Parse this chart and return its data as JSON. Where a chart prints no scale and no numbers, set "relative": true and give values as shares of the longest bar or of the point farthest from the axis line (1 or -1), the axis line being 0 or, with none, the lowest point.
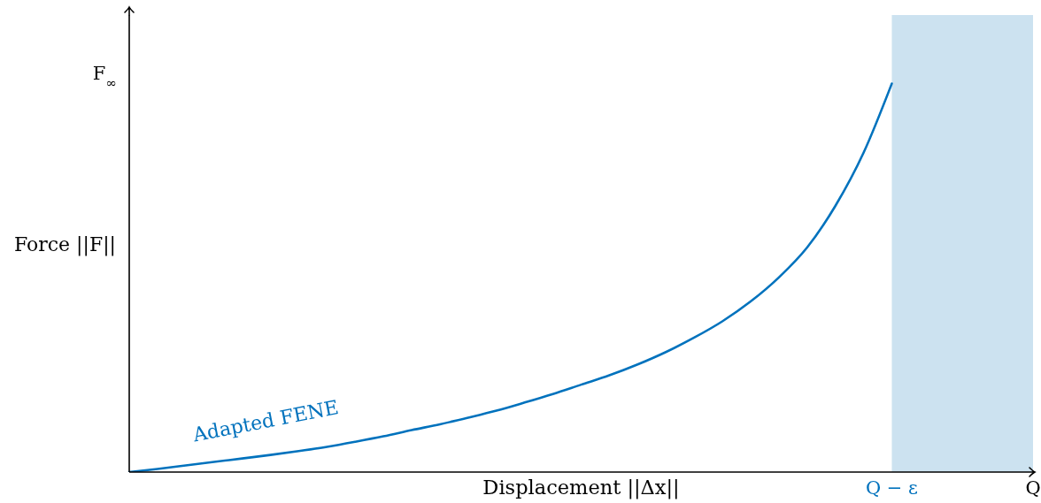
{
  "chart_data": {
    "type": "line",
    "relative": true,
    "xlabel": "Displacement ||Δx||",
    "ylabel": "Force ||F||",
    "categories": [
      null,
      null,
      null,
      null,
      null,
      null,
      null,
      null,
      null,
      null,
      null,
      null,
      null,
      null,
      null,
      null,
      null,
      null,
      null,
      null,
      null,
      null,
      null,
      null,
      null,
      null,
      null,
      "Q − ε",
      null,
      null,
      null,
      null,
      "Q"
    ],
    "series": [
      {
        "name": "Adapted FENE",
        "color": "#0072bd",
        "values": [
          0,
          0.008,
          0.017,
          0.026,
          0.035,
          0.044,
          0.054,
          0.065,
          0.078,
          0.092,
          0.108,
          0.123,
          0.14,
          0.158,
          0.179,
          0.201,
          0.225,
          0.249,
          0.277,
          0.309,
          0.346,
          0.388,
          0.439,
          0.501,
          0.578,
          0.685,
          0.822,
          1,
          null,
          null,
          null,
          null,
          null
        ]
      }
    ],
    "bands": [
      {
        "axis": "x",
        "from": "Q − ε",
        "to": "Q",
        "color": "#cce2f0"
      }
    ],
    "annotations": [
      "F$_{∞}$"
    ],
    "grid": false,
    "legend": false
  }
}
